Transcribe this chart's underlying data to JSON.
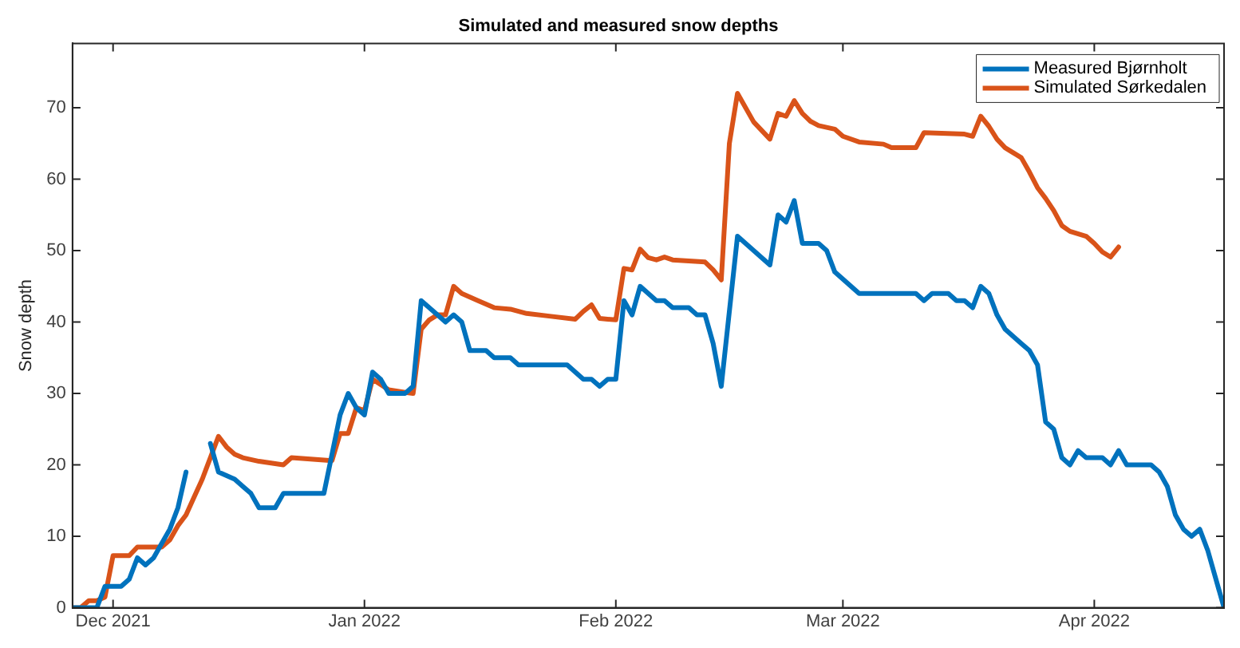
{
  "chart_data": {
    "type": "line",
    "title": "Simulated and measured snow depths",
    "ylabel": "Snow depth",
    "xlim": [
      "2021-11-26",
      "2022-04-17"
    ],
    "xticks": [
      {
        "value": "2021-12-01",
        "label": "Dec 2021"
      },
      {
        "value": "2022-01-01",
        "label": "Jan 2022"
      },
      {
        "value": "2022-02-01",
        "label": "Feb 2022"
      },
      {
        "value": "2022-03-01",
        "label": "Mar 2022"
      },
      {
        "value": "2022-04-01",
        "label": "Apr 2022"
      }
    ],
    "ylim": [
      0,
      79
    ],
    "yticks": [
      0,
      10,
      20,
      30,
      40,
      50,
      60,
      70
    ],
    "legend": "top right",
    "series": [
      {
        "name": "Measured Bjørnholt",
        "color": "#0072bd",
        "x": [
          "2021-11-26",
          "2021-11-29",
          "2021-11-30",
          "2021-12-02",
          "2021-12-03",
          "2021-12-04",
          "2021-12-05",
          "2021-12-06",
          "2021-12-07",
          "2021-12-08",
          "2021-12-09",
          "2021-12-10",
          "2021-12-12",
          "2021-12-13",
          "2021-12-14",
          "2021-12-16",
          "2021-12-17",
          "2021-12-18",
          "2021-12-19",
          "2021-12-21",
          "2021-12-22",
          "2021-12-27",
          "2021-12-29",
          "2021-12-30",
          "2021-12-31",
          "2022-01-01",
          "2022-01-02",
          "2022-01-03",
          "2022-01-04",
          "2022-01-06",
          "2022-01-07",
          "2022-01-08",
          "2022-01-10",
          "2022-01-11",
          "2022-01-12",
          "2022-01-13",
          "2022-01-14",
          "2022-01-16",
          "2022-01-17",
          "2022-01-19",
          "2022-01-20",
          "2022-01-26",
          "2022-01-28",
          "2022-01-29",
          "2022-01-30",
          "2022-01-31",
          "2022-02-01",
          "2022-02-02",
          "2022-02-03",
          "2022-02-04",
          "2022-02-06",
          "2022-02-07",
          "2022-02-08",
          "2022-02-10",
          "2022-02-11",
          "2022-02-12",
          "2022-02-13",
          "2022-02-14",
          "2022-02-16",
          "2022-02-20",
          "2022-02-21",
          "2022-02-22",
          "2022-02-23",
          "2022-02-24",
          "2022-02-26",
          "2022-02-27",
          "2022-02-28",
          "2022-03-01",
          "2022-03-03",
          "2022-03-10",
          "2022-03-11",
          "2022-03-12",
          "2022-03-14",
          "2022-03-15",
          "2022-03-16",
          "2022-03-17",
          "2022-03-18",
          "2022-03-19",
          "2022-03-20",
          "2022-03-21",
          "2022-03-23",
          "2022-03-24",
          "2022-03-25",
          "2022-03-26",
          "2022-03-27",
          "2022-03-28",
          "2022-03-29",
          "2022-03-30",
          "2022-03-31",
          "2022-04-02",
          "2022-04-03",
          "2022-04-04",
          "2022-04-05",
          "2022-04-08",
          "2022-04-09",
          "2022-04-10",
          "2022-04-11",
          "2022-04-12",
          "2022-04-13",
          "2022-04-14",
          "2022-04-15",
          "2022-04-17"
        ],
        "values": [
          0,
          0,
          3,
          3,
          4,
          7,
          6,
          7,
          9,
          11,
          14,
          19,
          null,
          23,
          19,
          18,
          17,
          16,
          14,
          14,
          16,
          16,
          27,
          30,
          28,
          27,
          33,
          32,
          30,
          30,
          31,
          43,
          41,
          40,
          41,
          40,
          36,
          36,
          35,
          35,
          34,
          34,
          32,
          32,
          31,
          32,
          32,
          43,
          41,
          45,
          43,
          43,
          42,
          42,
          41,
          41,
          37,
          31,
          52,
          48,
          55,
          54,
          57,
          51,
          51,
          50,
          47,
          46,
          44,
          44,
          43,
          44,
          44,
          43,
          43,
          42,
          45,
          44,
          41,
          39,
          37,
          36,
          34,
          26,
          25,
          21,
          20,
          22,
          21,
          21,
          20,
          22,
          20,
          20,
          19,
          17,
          13,
          11,
          10,
          11,
          8,
          0
        ]
      },
      {
        "name": "Simulated Sørkedalen",
        "color": "#d95319",
        "x": [
          "2021-11-26",
          "2021-11-27",
          "2021-11-28",
          "2021-11-29",
          "2021-11-30",
          "2021-12-01",
          "2021-12-03",
          "2021-12-04",
          "2021-12-07",
          "2021-12-08",
          "2021-12-09",
          "2021-12-10",
          "2021-12-11",
          "2021-12-12",
          "2021-12-13",
          "2021-12-14",
          "2021-12-15",
          "2021-12-16",
          "2021-12-17",
          "2021-12-19",
          "2021-12-22",
          "2021-12-23",
          "2021-12-28",
          "2021-12-29",
          "2021-12-30",
          "2021-12-31",
          "2022-01-01",
          "2022-01-02",
          "2022-01-04",
          "2022-01-07",
          "2022-01-08",
          "2022-01-09",
          "2022-01-10",
          "2022-01-11",
          "2022-01-12",
          "2022-01-13",
          "2022-01-15",
          "2022-01-17",
          "2022-01-19",
          "2022-01-21",
          "2022-01-24",
          "2022-01-27",
          "2022-01-28",
          "2022-01-29",
          "2022-01-30",
          "2022-02-01",
          "2022-02-02",
          "2022-02-03",
          "2022-02-04",
          "2022-02-05",
          "2022-02-06",
          "2022-02-07",
          "2022-02-08",
          "2022-02-12",
          "2022-02-13",
          "2022-02-14",
          "2022-02-15",
          "2022-02-16",
          "2022-02-18",
          "2022-02-20",
          "2022-02-21",
          "2022-02-22",
          "2022-02-23",
          "2022-02-24",
          "2022-02-25",
          "2022-02-26",
          "2022-02-28",
          "2022-03-01",
          "2022-03-03",
          "2022-03-06",
          "2022-03-07",
          "2022-03-10",
          "2022-03-11",
          "2022-03-16",
          "2022-03-17",
          "2022-03-18",
          "2022-03-19",
          "2022-03-20",
          "2022-03-21",
          "2022-03-22",
          "2022-03-23",
          "2022-03-24",
          "2022-03-25",
          "2022-03-26",
          "2022-03-27",
          "2022-03-28",
          "2022-03-29",
          "2022-03-31",
          "2022-04-01",
          "2022-04-02",
          "2022-04-03",
          "2022-04-04"
        ],
        "values": [
          0,
          0,
          1,
          1,
          1.5,
          7.3,
          7.3,
          8.5,
          8.5,
          9.5,
          11.5,
          13,
          15.5,
          18,
          21,
          24,
          22.5,
          21.5,
          21,
          20.5,
          20,
          21,
          20.6,
          24.4,
          24.4,
          28,
          27.6,
          32,
          30.5,
          30,
          39,
          40.3,
          41,
          41,
          45,
          44,
          43,
          42,
          41.8,
          41.2,
          40.8,
          40.4,
          41.5,
          42.4,
          40.5,
          40.3,
          47.5,
          47.3,
          50.2,
          49,
          48.7,
          49.1,
          48.7,
          48.4,
          47.3,
          45.9,
          65,
          72,
          68,
          65.6,
          69.2,
          68.8,
          71,
          69.2,
          68.1,
          67.5,
          67,
          66,
          65.2,
          64.9,
          64.4,
          64.4,
          66.5,
          66.3,
          66,
          68.8,
          67.4,
          65.6,
          64.4,
          63.7,
          63,
          61,
          58.8,
          57.3,
          55.6,
          53.5,
          52.7,
          52,
          51,
          49.8,
          49.1,
          50.5
        ]
      }
    ]
  }
}
